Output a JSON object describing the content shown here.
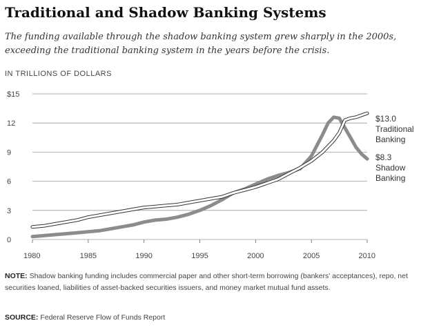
{
  "header": {
    "title": "Traditional and Shadow Banking Systems",
    "subtitle": "The funding available through the shadow banking system grew sharply in the 2000s, exceeding the traditional banking system in the years before the crisis.",
    "units": "IN TRILLIONS OF DOLLARS"
  },
  "footer": {
    "note_label": "NOTE:",
    "note_text": "Shadow banking funding includes commercial paper and other short-term borrowing (bankers' acceptances), repo, net securities loaned, liabilities of asset-backed securities issuers, and money market mutual fund assets.",
    "source_label": "SOURCE:",
    "source_text": "Federal Reserve Flow of Funds Report"
  },
  "colors": {
    "shadow": "#8c8c8c",
    "traditional_fill": "#ffffff",
    "traditional_outline": "#333333",
    "grid": "#999999"
  },
  "chart_data": {
    "type": "line",
    "title": "Traditional and Shadow Banking Systems",
    "ylabel": "IN TRILLIONS OF DOLLARS",
    "xlim": [
      1980,
      2010
    ],
    "ylim": [
      0,
      15
    ],
    "x_ticks": [
      {
        "value": 1980,
        "label": "1980"
      },
      {
        "value": 1985,
        "label": "1985"
      },
      {
        "value": 1990,
        "label": "1990"
      },
      {
        "value": 1995,
        "label": "1995"
      },
      {
        "value": 2000,
        "label": "2000"
      },
      {
        "value": 2005,
        "label": "2005"
      },
      {
        "value": 2010,
        "label": "2010"
      }
    ],
    "y_ticks": [
      {
        "value": 0,
        "label": "0"
      },
      {
        "value": 3,
        "label": "3"
      },
      {
        "value": 6,
        "label": "6"
      },
      {
        "value": 9,
        "label": "9"
      },
      {
        "value": 12,
        "label": "12"
      },
      {
        "value": 15,
        "label": "$15"
      }
    ],
    "grid": true,
    "series": [
      {
        "name": "Traditional Banking",
        "end_label": "$13.0",
        "label_lines": [
          "Traditional",
          "Banking"
        ],
        "style": "outline",
        "x": [
          1980,
          1981,
          1982,
          1983,
          1984,
          1985,
          1986,
          1987,
          1988,
          1989,
          1990,
          1991,
          1992,
          1993,
          1994,
          1995,
          1996,
          1997,
          1998,
          1999,
          2000,
          2001,
          2002,
          2003,
          2004,
          2005,
          2006,
          2007,
          2007.5,
          2008,
          2008.5,
          2009,
          2009.5,
          2010
        ],
        "values": [
          1.3,
          1.4,
          1.6,
          1.8,
          2.0,
          2.3,
          2.5,
          2.7,
          2.9,
          3.1,
          3.3,
          3.4,
          3.5,
          3.6,
          3.8,
          4.0,
          4.2,
          4.4,
          4.8,
          5.1,
          5.4,
          5.8,
          6.2,
          6.8,
          7.4,
          8.1,
          9.0,
          10.2,
          11.0,
          12.3,
          12.5,
          12.6,
          12.8,
          13.0
        ]
      },
      {
        "name": "Shadow Banking",
        "end_label": "$8.3",
        "label_lines": [
          "Shadow",
          "Banking"
        ],
        "style": "thick",
        "x": [
          1980,
          1981,
          1982,
          1983,
          1984,
          1985,
          1986,
          1987,
          1988,
          1989,
          1990,
          1991,
          1992,
          1993,
          1994,
          1995,
          1996,
          1997,
          1998,
          1999,
          2000,
          2001,
          2002,
          2003,
          2004,
          2005,
          2006,
          2006.5,
          2007,
          2007.5,
          2008,
          2008.5,
          2009,
          2009.5,
          2010
        ],
        "values": [
          0.3,
          0.4,
          0.5,
          0.6,
          0.7,
          0.8,
          0.9,
          1.1,
          1.3,
          1.5,
          1.8,
          2.0,
          2.1,
          2.3,
          2.6,
          3.0,
          3.5,
          4.1,
          4.8,
          5.2,
          5.7,
          6.2,
          6.6,
          6.9,
          7.3,
          8.6,
          10.8,
          12.0,
          12.6,
          12.5,
          11.5,
          10.5,
          9.5,
          8.8,
          8.3
        ]
      }
    ]
  }
}
